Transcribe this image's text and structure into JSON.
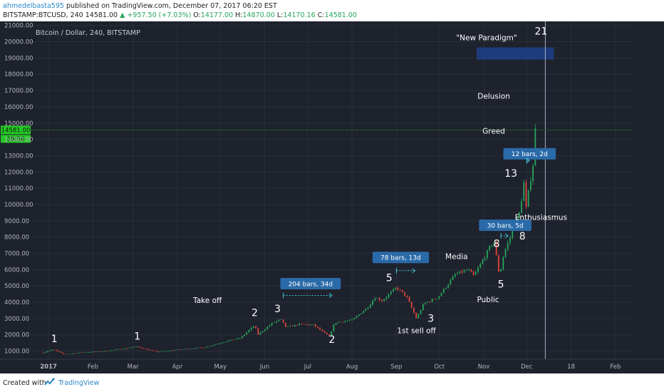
{
  "header": {
    "author": "ahmedelbasta595",
    "published_text": "published on TradingView.com, December 07, 2017 06:20 EST",
    "symbol": "BITSTAMP:BTCUSD, 240",
    "last_price": "14581.00",
    "change": "▲ +957.50 (+7.03%)",
    "o_label": "O:",
    "o_value": "14177.00",
    "h_label": "H:",
    "h_value": "14870.00",
    "l_label": "L:",
    "l_value": "14170.16",
    "c_label": "C:",
    "c_value": "14581.00"
  },
  "chart_title": "Bitcoin / Dollar, 240, BITSTAMP",
  "price_badge": {
    "price": "14581.00",
    "countdown": "39:56"
  },
  "crosshair_date": "2017-12-14 00:00:00",
  "footer": {
    "created": "Created with",
    "brand": "TradingView"
  },
  "colors": {
    "background": "#1e222d",
    "candle_up": "#26a65b",
    "candle_down": "#e0443a",
    "label_box": "#2a6aa8",
    "paradigm_box": "#1e3f8a",
    "price_line": "#26c926"
  },
  "chart_data": {
    "type": "candlestick",
    "title": "Bitcoin / Dollar, 240, BITSTAMP",
    "y_ticks": [
      1000,
      2000,
      3000,
      4000,
      5000,
      6000,
      7000,
      8000,
      9000,
      10000,
      11000,
      12000,
      13000,
      14000,
      15000,
      16000,
      17000,
      18000,
      19000,
      20000,
      21000
    ],
    "y_tick_labels": [
      "1000.00",
      "2000.00",
      "3000.00",
      "4000.00",
      "5000.00",
      "6000.00",
      "7000.00",
      "8000.00",
      "9000.00",
      "10000.00",
      "11000.00",
      "12000.00",
      "13000.00",
      "14000.00",
      "15000.00",
      "16000.00",
      "17000.00",
      "18000.00",
      "19000.00",
      "20000.00",
      "21000.00"
    ],
    "x_ticks": [
      {
        "label": "2017",
        "date": "2017-01-01"
      },
      {
        "label": "Feb",
        "date": "2017-02-01"
      },
      {
        "label": "Mar",
        "date": "2017-03-01"
      },
      {
        "label": "Apr",
        "date": "2017-04-01"
      },
      {
        "label": "May",
        "date": "2017-05-01"
      },
      {
        "label": "Jun",
        "date": "2017-06-01"
      },
      {
        "label": "Jul",
        "date": "2017-07-01"
      },
      {
        "label": "Aug",
        "date": "2017-08-01"
      },
      {
        "label": "Sep",
        "date": "2017-09-01"
      },
      {
        "label": "Oct",
        "date": "2017-10-01"
      },
      {
        "label": "Nov",
        "date": "2017-11-01"
      },
      {
        "label": "Dec",
        "date": "2017-12-01"
      },
      {
        "label": "18",
        "date": "2018-01-01"
      },
      {
        "label": "Feb",
        "date": "2018-02-01"
      }
    ],
    "price_path": [
      [
        "2016-12-28",
        900
      ],
      [
        "2017-01-04",
        1100
      ],
      [
        "2017-01-12",
        800
      ],
      [
        "2017-01-25",
        920
      ],
      [
        "2017-02-10",
        1000
      ],
      [
        "2017-02-25",
        1180
      ],
      [
        "2017-03-03",
        1280
      ],
      [
        "2017-03-18",
        950
      ],
      [
        "2017-04-01",
        1080
      ],
      [
        "2017-04-20",
        1230
      ],
      [
        "2017-05-05",
        1600
      ],
      [
        "2017-05-15",
        1800
      ],
      [
        "2017-05-25",
        2600
      ],
      [
        "2017-05-27",
        2000
      ],
      [
        "2017-06-06",
        2700
      ],
      [
        "2017-06-12",
        2950
      ],
      [
        "2017-06-16",
        2450
      ],
      [
        "2017-06-25",
        2650
      ],
      [
        "2017-07-05",
        2600
      ],
      [
        "2017-07-16",
        1900
      ],
      [
        "2017-07-20",
        2750
      ],
      [
        "2017-08-01",
        2900
      ],
      [
        "2017-08-12",
        3700
      ],
      [
        "2017-08-17",
        4300
      ],
      [
        "2017-08-22",
        4100
      ],
      [
        "2017-09-01",
        4900
      ],
      [
        "2017-09-08",
        4350
      ],
      [
        "2017-09-15",
        3000
      ],
      [
        "2017-09-20",
        3900
      ],
      [
        "2017-09-30",
        4300
      ],
      [
        "2017-10-12",
        5700
      ],
      [
        "2017-10-21",
        6000
      ],
      [
        "2017-10-25",
        5600
      ],
      [
        "2017-11-01",
        6700
      ],
      [
        "2017-11-08",
        7800
      ],
      [
        "2017-11-12",
        5600
      ],
      [
        "2017-11-15",
        7000
      ],
      [
        "2017-11-20",
        8100
      ],
      [
        "2017-11-26",
        9500
      ],
      [
        "2017-11-29",
        11300
      ],
      [
        "2017-11-30",
        9400
      ],
      [
        "2017-12-03",
        11200
      ],
      [
        "2017-12-06",
        12800
      ],
      [
        "2017-12-07",
        14581
      ]
    ],
    "annotations": [
      {
        "text": "1",
        "date": "2017-01-05",
        "price": 1550
      },
      {
        "text": "1",
        "date": "2017-03-04",
        "price": 1700
      },
      {
        "text": "Take off",
        "date": "2017-04-22",
        "price": 3950
      },
      {
        "text": "2",
        "date": "2017-05-25",
        "price": 3150
      },
      {
        "text": "3",
        "date": "2017-06-10",
        "price": 3400
      },
      {
        "text": "2",
        "date": "2017-07-18",
        "price": 1500
      },
      {
        "text": "5",
        "date": "2017-08-27",
        "price": 5300
      },
      {
        "text": "1st sell off",
        "date": "2017-09-15",
        "price": 2100
      },
      {
        "text": "3",
        "date": "2017-09-25",
        "price": 2800
      },
      {
        "text": "Media",
        "date": "2017-10-13",
        "price": 6650
      },
      {
        "text": "Public",
        "date": "2017-11-04",
        "price": 4000
      },
      {
        "text": "5",
        "date": "2017-11-13",
        "price": 4900
      },
      {
        "text": "8",
        "date": "2017-11-10",
        "price": 7400
      },
      {
        "text": "8",
        "date": "2017-11-28",
        "price": 7850
      },
      {
        "text": "13",
        "date": "2017-11-20",
        "price": 11700
      },
      {
        "text": "Enthusiasmus",
        "date": "2017-12-11",
        "price": 9050
      },
      {
        "text": "Greed",
        "date": "2017-11-08",
        "price": 14350
      },
      {
        "text": "Delusion",
        "date": "2017-11-08",
        "price": 16500
      },
      {
        "text": "\"New Paradigm\"",
        "date": "2017-11-03",
        "price": 20100
      },
      {
        "text": "21",
        "date": "2017-12-11",
        "price": 20450
      }
    ],
    "measure_labels": [
      {
        "text": "204 bars, 34d",
        "date": "2017-07-03",
        "price": 5140,
        "arrow_from": "2017-06-14",
        "arrow_to": "2017-07-18",
        "arrow_price": 4420
      },
      {
        "text": "78 bars, 13d",
        "date": "2017-09-04",
        "price": 6750,
        "arrow_from": "2017-09-01",
        "arrow_to": "2017-09-14",
        "arrow_price": 5940
      },
      {
        "text": "30 bars, 5d",
        "date": "2017-11-16",
        "price": 8730,
        "arrow_from": "2017-11-13",
        "arrow_to": "2017-11-18",
        "arrow_price": 8080
      },
      {
        "text": "12 bars, 2d",
        "date": "2017-12-03",
        "price": 13120,
        "arrow_from": "2017-12-01",
        "arrow_to": "2017-12-03",
        "arrow_price": 12700
      }
    ],
    "paradigm_zone": {
      "from": "2017-10-27",
      "to": "2017-12-20",
      "low": 18900,
      "high": 19650
    },
    "vertical_line_date": "2017-12-14",
    "last_price": 14581,
    "x_range": [
      "2016-12-20",
      "2018-02-13"
    ],
    "y_range": [
      500,
      21250
    ]
  }
}
